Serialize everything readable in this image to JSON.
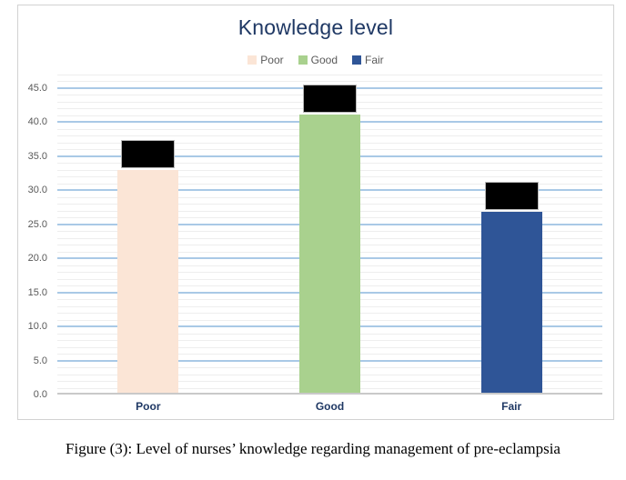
{
  "chart_data": {
    "type": "bar",
    "title": "Knowledge level",
    "categories": [
      "Poor",
      "Good",
      "Fair"
    ],
    "values": [
      32.7,
      40.8,
      26.5
    ],
    "bar_colors": [
      "#fbe5d6",
      "#a9d18e",
      "#2f5597"
    ],
    "xlabel": "",
    "ylabel": "",
    "ylim": [
      0,
      47
    ],
    "ytick_step": 5,
    "minor_tick_step": 1,
    "ytick_labels": [
      "0.0",
      "5.0",
      "10.0",
      "15.0",
      "20.0",
      "25.0",
      "30.0",
      "35.0",
      "40.0",
      "45.0"
    ],
    "grid": "major-and-minor-horizontal",
    "legend_position": "top",
    "legend": [
      "Poor",
      "Good",
      "Fair"
    ],
    "data_label_boxes": {
      "covered": true,
      "fill": "#000000"
    }
  },
  "colors": {
    "title": "#1f3864",
    "category_label": "#1f3864",
    "tick_label": "#595959",
    "legend_text": "#595959",
    "major_gridline": "#a9c9e6",
    "minor_gridline": "#eeeeee",
    "axis_line": "#c9c9c9",
    "frame_border": "#d2d2d2",
    "label_box_fill": "#000000",
    "label_box_border": "#b7b7b7"
  },
  "caption": {
    "text": "Figure (3): Level of nurses’ knowledge regarding management of pre-eclampsia"
  }
}
